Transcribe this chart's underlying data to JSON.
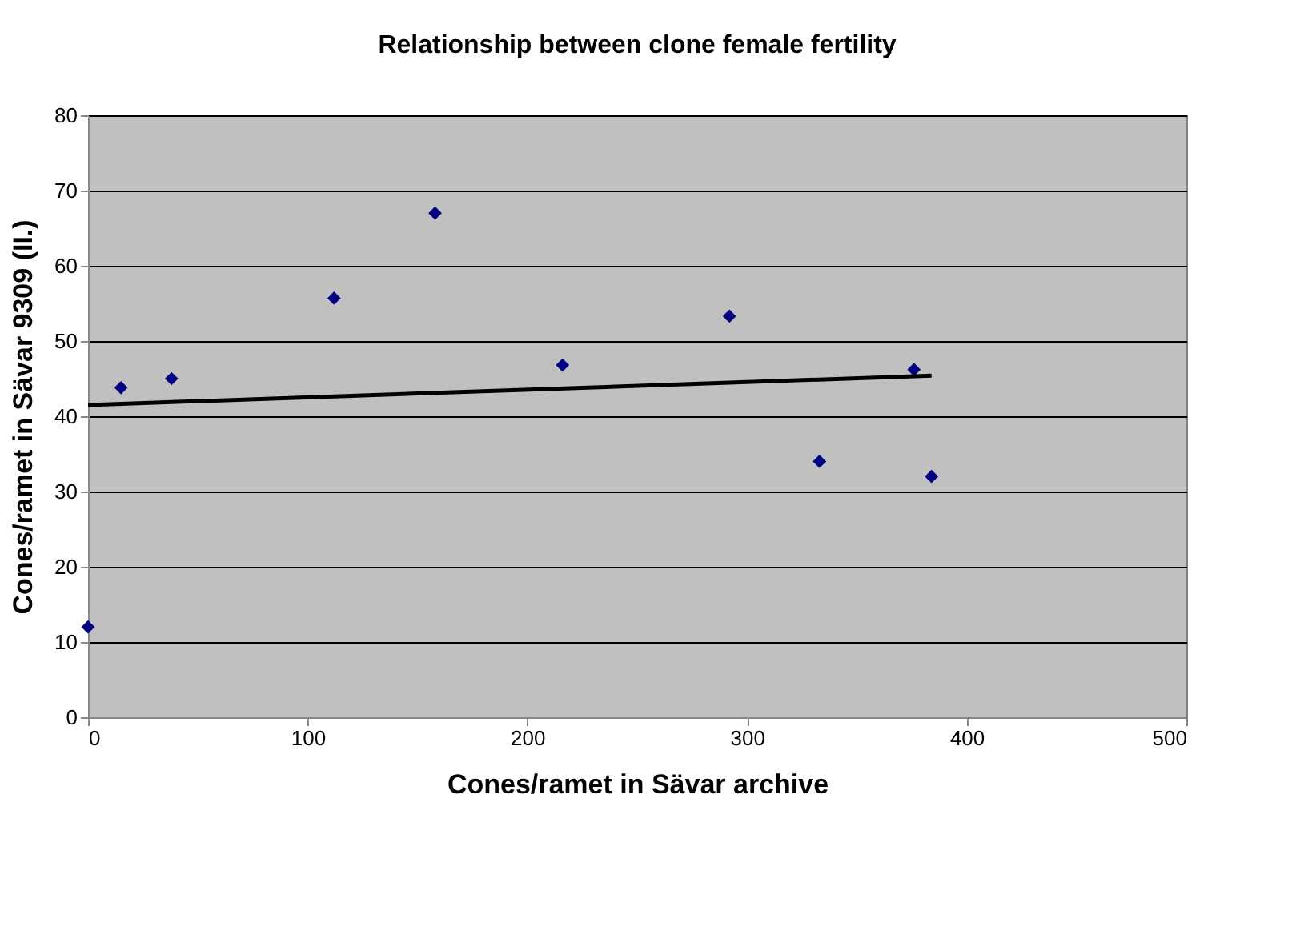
{
  "chart_data": {
    "type": "scatter",
    "title": "Relationship between clone female fertility",
    "xlabel": "Cones/ramet in Sävar archive",
    "ylabel": "Cones/ramet in Sävar 9309 (II.)",
    "xlim": [
      0,
      500
    ],
    "xticks": [
      0,
      100,
      200,
      300,
      400,
      500
    ],
    "ylim": [
      0,
      80
    ],
    "yticks": [
      0,
      10,
      20,
      30,
      40,
      50,
      60,
      70,
      80
    ],
    "grid": "y",
    "series": [
      {
        "color": "#000080",
        "marker": "diamond",
        "x": [
          0,
          15,
          38,
          112,
          158,
          216,
          292,
          333,
          376,
          384
        ],
        "values": [
          12,
          43.8,
          45,
          55.7,
          67,
          46.8,
          53.3,
          34,
          46.2,
          32
        ]
      },
      {
        "type": "line",
        "color": "#000000",
        "line_style": "solid",
        "marker": "none",
        "x": [
          0,
          384
        ],
        "values": [
          41.5,
          45.4
        ]
      }
    ]
  }
}
